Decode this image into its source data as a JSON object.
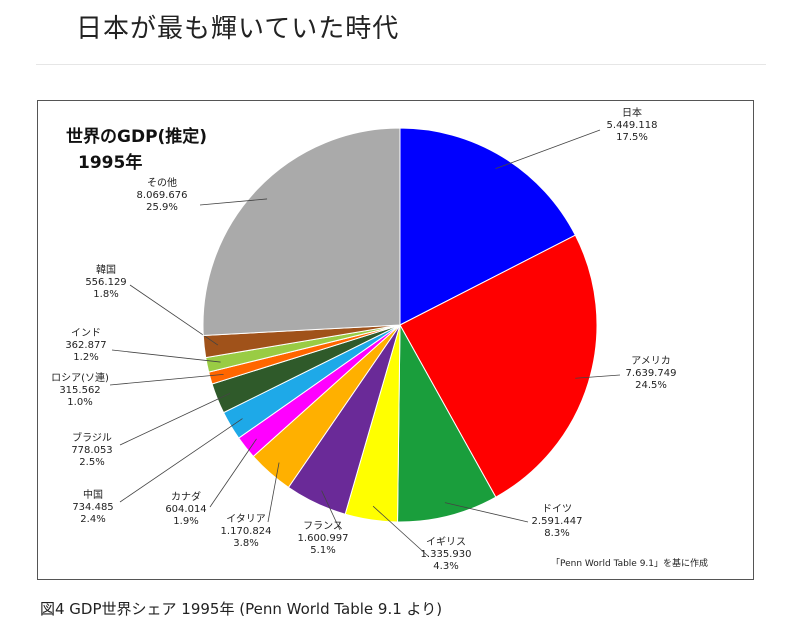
{
  "page": {
    "title": "日本が最も輝いていた時代",
    "caption": "図4 GDP世界シェア 1995年 (Penn World Table 9.1 より)"
  },
  "chart_data": {
    "type": "pie",
    "title": "世界のGDP(推定)",
    "subtitle": "1995年",
    "source": "「Penn World Table 9.1」を基に作成",
    "slices": [
      {
        "name": "日本",
        "value_text": "5.449.118",
        "percent_text": "17.5%",
        "percent": 17.5,
        "color": "#0000ff"
      },
      {
        "name": "アメリカ",
        "value_text": "7.639.749",
        "percent_text": "24.5%",
        "percent": 24.5,
        "color": "#ff0000"
      },
      {
        "name": "ドイツ",
        "value_text": "2.591.447",
        "percent_text": "8.3%",
        "percent": 8.3,
        "color": "#1a9e3c"
      },
      {
        "name": "イギリス",
        "value_text": "1.335.930",
        "percent_text": "4.3%",
        "percent": 4.3,
        "color": "#ffff00"
      },
      {
        "name": "フランス",
        "value_text": "1.600.997",
        "percent_text": "5.1%",
        "percent": 5.1,
        "color": "#6a2a98"
      },
      {
        "name": "イタリア",
        "value_text": "1.170.824",
        "percent_text": "3.8%",
        "percent": 3.8,
        "color": "#ffb000"
      },
      {
        "name": "カナダ",
        "value_text": "604.014",
        "percent_text": "1.9%",
        "percent": 1.9,
        "color": "#ff00ff"
      },
      {
        "name": "中国",
        "value_text": "734.485",
        "percent_text": "2.4%",
        "percent": 2.4,
        "color": "#1ea9e8"
      },
      {
        "name": "ブラジル",
        "value_text": "778.053",
        "percent_text": "2.5%",
        "percent": 2.5,
        "color": "#2f5a2a"
      },
      {
        "name": "ロシア(ソ連)",
        "value_text": "315.562",
        "percent_text": "1.0%",
        "percent": 1.0,
        "color": "#ff6600"
      },
      {
        "name": "インド",
        "value_text": "362.877",
        "percent_text": "1.2%",
        "percent": 1.2,
        "color": "#99cc44"
      },
      {
        "name": "韓国",
        "value_text": "556.129",
        "percent_text": "1.8%",
        "percent": 1.8,
        "color": "#a0521a"
      },
      {
        "name": "その他",
        "value_text": "8.069.676",
        "percent_text": "25.9%",
        "percent": 25.9,
        "color": "#aaaaaa"
      }
    ]
  }
}
